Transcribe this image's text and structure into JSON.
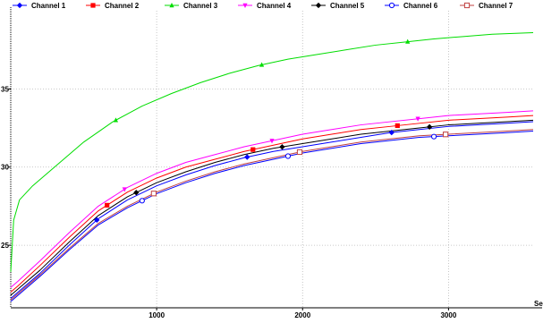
{
  "chart_data": {
    "type": "line",
    "xlabel": "Se",
    "ylabel": "",
    "xlim": [
      0,
      3580
    ],
    "ylim": [
      21,
      40
    ],
    "x_ticks": [
      1000,
      2000,
      3000
    ],
    "y_ticks": [
      25,
      30,
      35
    ],
    "x_tick_labels": [
      "1000",
      "2000",
      "3000"
    ],
    "y_tick_labels": [
      "25",
      "30",
      "35"
    ],
    "grid": true,
    "legend": "top",
    "series": [
      {
        "name": "Channel 1",
        "color": "#0000ff",
        "marker": "diamond",
        "x": [
          0,
          50,
          200,
          400,
          600,
          800,
          1000,
          1200,
          1400,
          1600,
          1800,
          2000,
          2200,
          2400,
          2600,
          2800,
          3000,
          3200,
          3400,
          3580
        ],
        "y": [
          21.6,
          22.0,
          23.2,
          25.0,
          26.7,
          27.9,
          28.8,
          29.5,
          30.1,
          30.6,
          31.0,
          31.3,
          31.6,
          31.9,
          32.2,
          32.4,
          32.6,
          32.7,
          32.8,
          32.9
        ],
        "marker_x": [
          590,
          1620,
          2610
        ]
      },
      {
        "name": "Channel 2",
        "color": "#ff0000",
        "marker": "square",
        "x": [
          0,
          50,
          200,
          400,
          600,
          800,
          1000,
          1200,
          1400,
          1600,
          1800,
          2000,
          2200,
          2400,
          2600,
          2800,
          3000,
          3200,
          3400,
          3580
        ],
        "y": [
          22.0,
          22.4,
          23.7,
          25.5,
          27.2,
          28.4,
          29.3,
          30.0,
          30.5,
          31.0,
          31.4,
          31.8,
          32.1,
          32.4,
          32.6,
          32.8,
          33.0,
          33.1,
          33.2,
          33.3
        ],
        "marker_x": [
          660,
          1660,
          2650
        ]
      },
      {
        "name": "Channel 3",
        "color": "#00dd00",
        "marker": "triangle",
        "x": [
          0,
          20,
          60,
          150,
          300,
          500,
          700,
          900,
          1100,
          1300,
          1500,
          1700,
          1900,
          2100,
          2300,
          2500,
          2700,
          2900,
          3100,
          3300,
          3580
        ],
        "y": [
          23.3,
          26.6,
          27.9,
          28.8,
          30.0,
          31.6,
          32.9,
          33.9,
          34.7,
          35.4,
          36.0,
          36.5,
          36.9,
          37.2,
          37.5,
          37.8,
          38.0,
          38.2,
          38.35,
          38.5,
          38.6
        ],
        "marker_x": [
          720,
          1720,
          2720
        ]
      },
      {
        "name": "Channel 4",
        "color": "#ff00ff",
        "marker": "triangle-down",
        "x": [
          0,
          50,
          200,
          400,
          600,
          800,
          1000,
          1200,
          1400,
          1600,
          1800,
          2000,
          2200,
          2400,
          2600,
          2800,
          3000,
          3200,
          3400,
          3580
        ],
        "y": [
          22.3,
          22.7,
          24.0,
          25.8,
          27.5,
          28.7,
          29.6,
          30.3,
          30.8,
          31.3,
          31.7,
          32.1,
          32.4,
          32.7,
          32.9,
          33.1,
          33.3,
          33.4,
          33.5,
          33.6
        ],
        "marker_x": [
          780,
          1790,
          2790
        ]
      },
      {
        "name": "Channel 5",
        "color": "#000000",
        "marker": "diamond",
        "x": [
          0,
          50,
          200,
          400,
          600,
          800,
          1000,
          1200,
          1400,
          1600,
          1800,
          2000,
          2200,
          2400,
          2600,
          2800,
          3000,
          3200,
          3400,
          3580
        ],
        "y": [
          21.8,
          22.2,
          23.4,
          25.2,
          26.9,
          28.1,
          29.0,
          29.7,
          30.3,
          30.8,
          31.2,
          31.5,
          31.8,
          32.1,
          32.3,
          32.5,
          32.7,
          32.8,
          32.9,
          33.0
        ],
        "marker_x": [
          860,
          1860,
          2870
        ]
      },
      {
        "name": "Channel 6",
        "color": "#0000ff",
        "marker": "circle-open",
        "x": [
          0,
          50,
          200,
          400,
          600,
          800,
          1000,
          1200,
          1400,
          1600,
          1800,
          2000,
          2200,
          2400,
          2600,
          2800,
          3000,
          3200,
          3400,
          3580
        ],
        "y": [
          21.4,
          21.8,
          23.0,
          24.7,
          26.3,
          27.4,
          28.3,
          29.0,
          29.6,
          30.1,
          30.5,
          30.9,
          31.2,
          31.5,
          31.7,
          31.9,
          32.0,
          32.1,
          32.2,
          32.3
        ],
        "marker_x": [
          900,
          1900,
          2900
        ]
      },
      {
        "name": "Channel 7",
        "color": "#c04040",
        "marker": "square-open",
        "x": [
          0,
          50,
          200,
          400,
          600,
          800,
          1000,
          1200,
          1400,
          1600,
          1800,
          2000,
          2200,
          2400,
          2600,
          2800,
          3000,
          3200,
          3400,
          3580
        ],
        "y": [
          21.5,
          21.9,
          23.1,
          24.8,
          26.4,
          27.5,
          28.4,
          29.1,
          29.7,
          30.2,
          30.6,
          31.0,
          31.3,
          31.6,
          31.8,
          32.0,
          32.1,
          32.2,
          32.3,
          32.4
        ],
        "marker_x": [
          980,
          1980,
          2980
        ]
      }
    ]
  }
}
